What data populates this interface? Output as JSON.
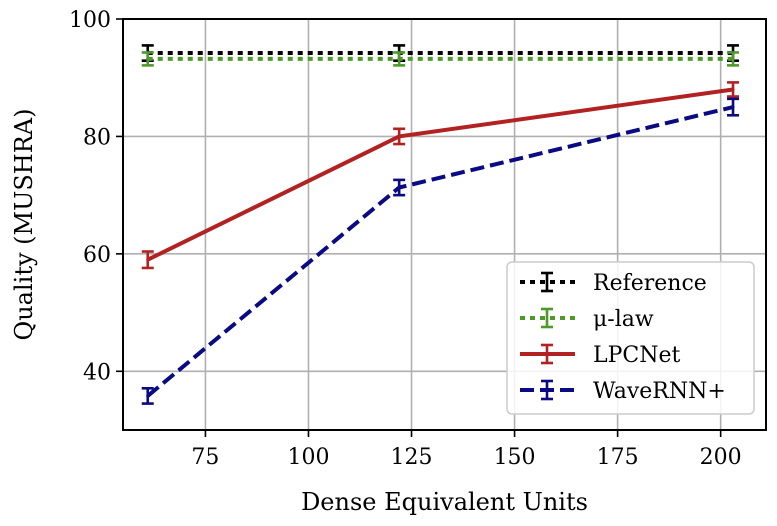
{
  "chart_data": {
    "type": "line",
    "title": "",
    "xlabel": "Dense Equivalent Units",
    "ylabel": "Quality (MUSHRA)",
    "xlim": [
      55,
      211
    ],
    "ylim": [
      30,
      100
    ],
    "xticks": [
      75,
      100,
      125,
      150,
      175,
      200
    ],
    "yticks": [
      40,
      60,
      80,
      100
    ],
    "grid": true,
    "legend_position": "bottom-right",
    "series": [
      {
        "name": "Reference",
        "color": "#000000",
        "dash": "dotted",
        "x": [
          61,
          122,
          203
        ],
        "y": [
          94.2,
          94.2,
          94.2
        ],
        "err": [
          1.3,
          1.3,
          1.3
        ]
      },
      {
        "name": "μ-law",
        "color": "#4d9a2a",
        "dash": "dotted",
        "x": [
          61,
          122,
          203
        ],
        "y": [
          93.2,
          93.2,
          93.2
        ],
        "err": [
          1.1,
          1.1,
          1.1
        ]
      },
      {
        "name": "LPCNet",
        "color": "#b22222",
        "dash": "solid",
        "x": [
          61,
          122,
          203
        ],
        "y": [
          59.0,
          80.0,
          88.0
        ],
        "err": [
          1.4,
          1.3,
          1.2
        ]
      },
      {
        "name": "WaveRNN+",
        "color": "#0a0a82",
        "dash": "dashed",
        "x": [
          61,
          122,
          203
        ],
        "y": [
          35.8,
          71.3,
          85.0
        ],
        "err": [
          1.3,
          1.3,
          1.4
        ]
      }
    ]
  }
}
